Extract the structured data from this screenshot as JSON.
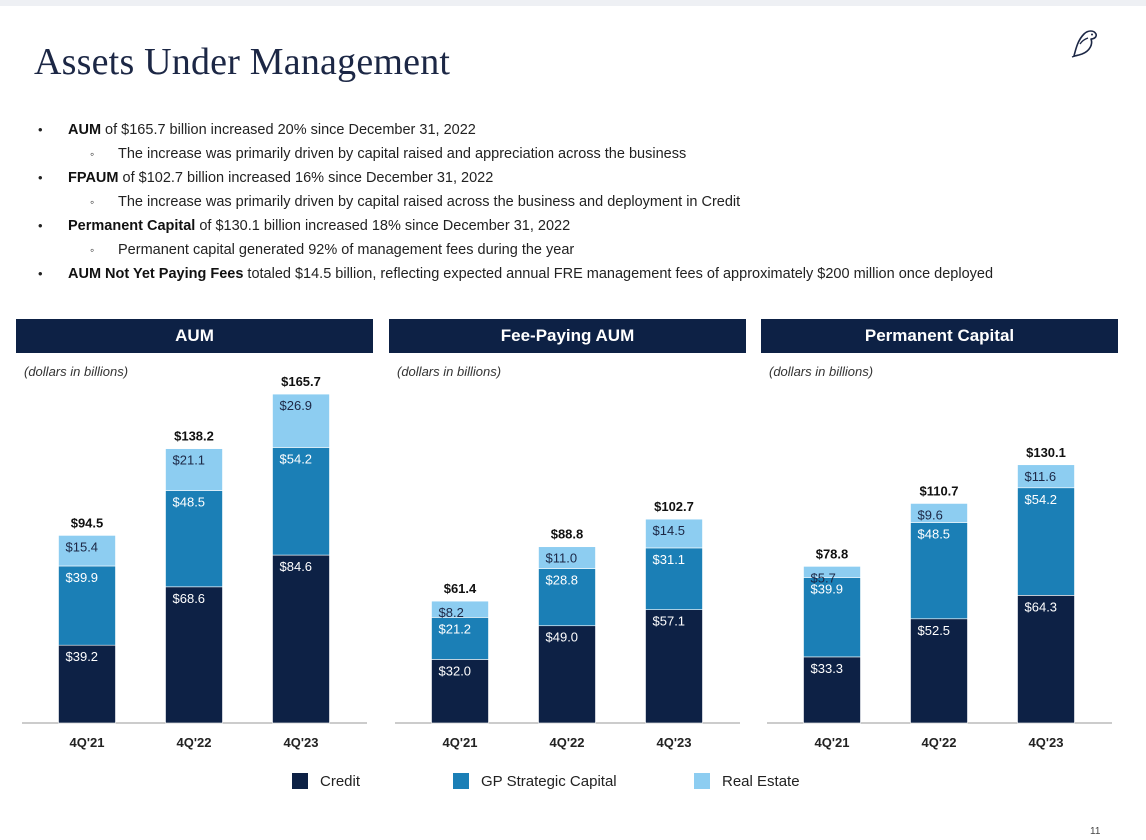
{
  "slide": {
    "title": "Assets Under Management",
    "page_number": "11"
  },
  "bullets": [
    {
      "level": 1,
      "bold": "AUM",
      "text": " of $165.7 billion increased 20% since December 31, 2022"
    },
    {
      "level": 2,
      "bold": "",
      "text": "The increase was primarily driven by capital raised and appreciation across the business"
    },
    {
      "level": 1,
      "bold": "FPAUM",
      "text": " of $102.7 billion increased 16% since December 31, 2022"
    },
    {
      "level": 2,
      "bold": "",
      "text": "The increase was primarily driven by capital raised across the business and deployment in Credit"
    },
    {
      "level": 1,
      "bold": "Permanent Capital",
      "text": " of $130.1 billion increased 18% since December 31, 2022"
    },
    {
      "level": 2,
      "bold": "",
      "text": "Permanent capital generated 92% of management fees during the year"
    },
    {
      "level": 1,
      "bold": "AUM Not Yet Paying Fees",
      "text": " totaled $14.5 billion, reflecting expected annual FRE management fees of approximately $200 million once deployed"
    }
  ],
  "legend": [
    {
      "name": "Credit",
      "color": "#0d2145"
    },
    {
      "name": "GP Strategic Capital",
      "color": "#1b7fb6"
    },
    {
      "name": "Real Estate",
      "color": "#8dcdf1"
    }
  ],
  "chart_data": [
    {
      "type": "bar",
      "stacked": true,
      "title": "AUM",
      "unit_note": "(dollars in billions)",
      "categories": [
        "4Q'21",
        "4Q'22",
        "4Q'23"
      ],
      "totals": [
        "$94.5",
        "$138.2",
        "$165.7"
      ],
      "series": [
        {
          "name": "Credit",
          "values": [
            39.2,
            68.6,
            84.6
          ]
        },
        {
          "name": "GP Strategic Capital",
          "values": [
            39.9,
            48.5,
            54.2
          ]
        },
        {
          "name": "Real Estate",
          "values": [
            15.4,
            21.1,
            26.9
          ]
        }
      ]
    },
    {
      "type": "bar",
      "stacked": true,
      "title": "Fee-Paying AUM",
      "unit_note": "(dollars in billions)",
      "categories": [
        "4Q'21",
        "4Q'22",
        "4Q'23"
      ],
      "totals": [
        "$61.4",
        "$88.8",
        "$102.7"
      ],
      "series": [
        {
          "name": "Credit",
          "values": [
            32.0,
            49.0,
            57.1
          ]
        },
        {
          "name": "GP Strategic Capital",
          "values": [
            21.2,
            28.8,
            31.1
          ]
        },
        {
          "name": "Real Estate",
          "values": [
            8.2,
            11.0,
            14.5
          ]
        }
      ]
    },
    {
      "type": "bar",
      "stacked": true,
      "title": "Permanent Capital",
      "unit_note": "(dollars in billions)",
      "categories": [
        "4Q'21",
        "4Q'22",
        "4Q'23"
      ],
      "totals": [
        "$78.8",
        "$110.7",
        "$130.1"
      ],
      "series": [
        {
          "name": "Credit",
          "values": [
            33.3,
            52.5,
            64.3
          ]
        },
        {
          "name": "GP Strategic Capital",
          "values": [
            39.9,
            48.5,
            54.2
          ]
        },
        {
          "name": "Real Estate",
          "values": [
            5.7,
            9.6,
            11.6
          ]
        }
      ]
    }
  ]
}
